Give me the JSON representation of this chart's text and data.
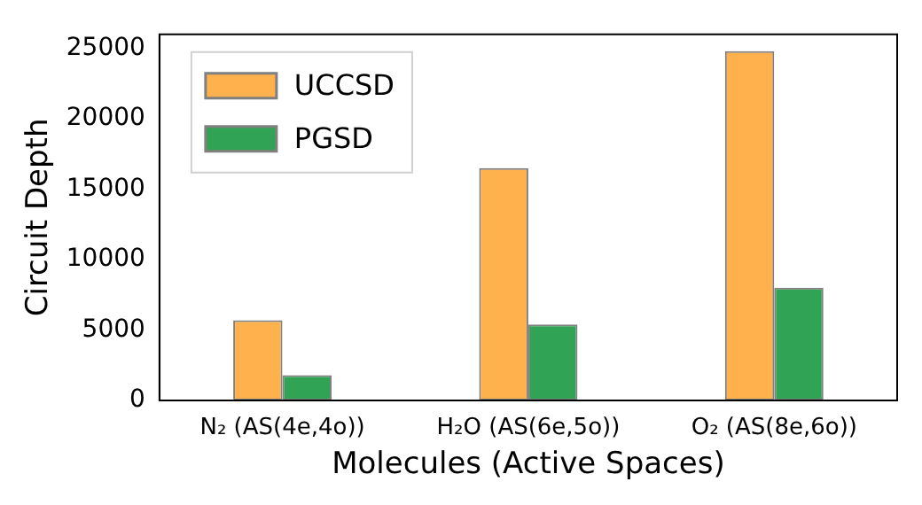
{
  "chart_data": {
    "type": "bar",
    "xlabel": "Molecules (Active Spaces)",
    "ylabel": "Circuit Depth",
    "categories": [
      "N₂ (AS(4e,4o))",
      "H₂O (AS(6e,5o))",
      "O₂ (AS(8e,6o))"
    ],
    "series": [
      {
        "name": "UCCSD",
        "color": "#ffb14e",
        "values": [
          5700,
          16500,
          24800
        ]
      },
      {
        "name": "PGSD",
        "color": "#30a354",
        "values": [
          1800,
          5400,
          8000
        ]
      }
    ],
    "ylim": [
      0,
      26000
    ],
    "yticks": [
      0,
      5000,
      10000,
      15000,
      20000,
      25000
    ],
    "grid": false,
    "legend": "top left"
  }
}
